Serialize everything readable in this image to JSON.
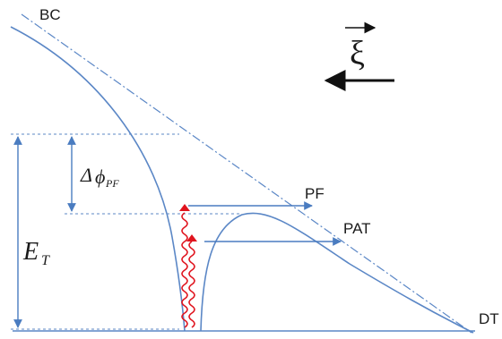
{
  "labels": {
    "bc": "BC",
    "dt": "DT",
    "pf": "PF",
    "pat": "PAT",
    "xi": "ξ",
    "delta": "Δ",
    "phi": "ϕ",
    "phi_sub": "PF",
    "et_main": "E",
    "et_sub": "T"
  },
  "colors": {
    "curve": "#5b87c6",
    "arrow": "#4a7cc0",
    "dash": "#5b87c6",
    "wave": "#e0141e",
    "text": "#1a1a1a"
  }
}
